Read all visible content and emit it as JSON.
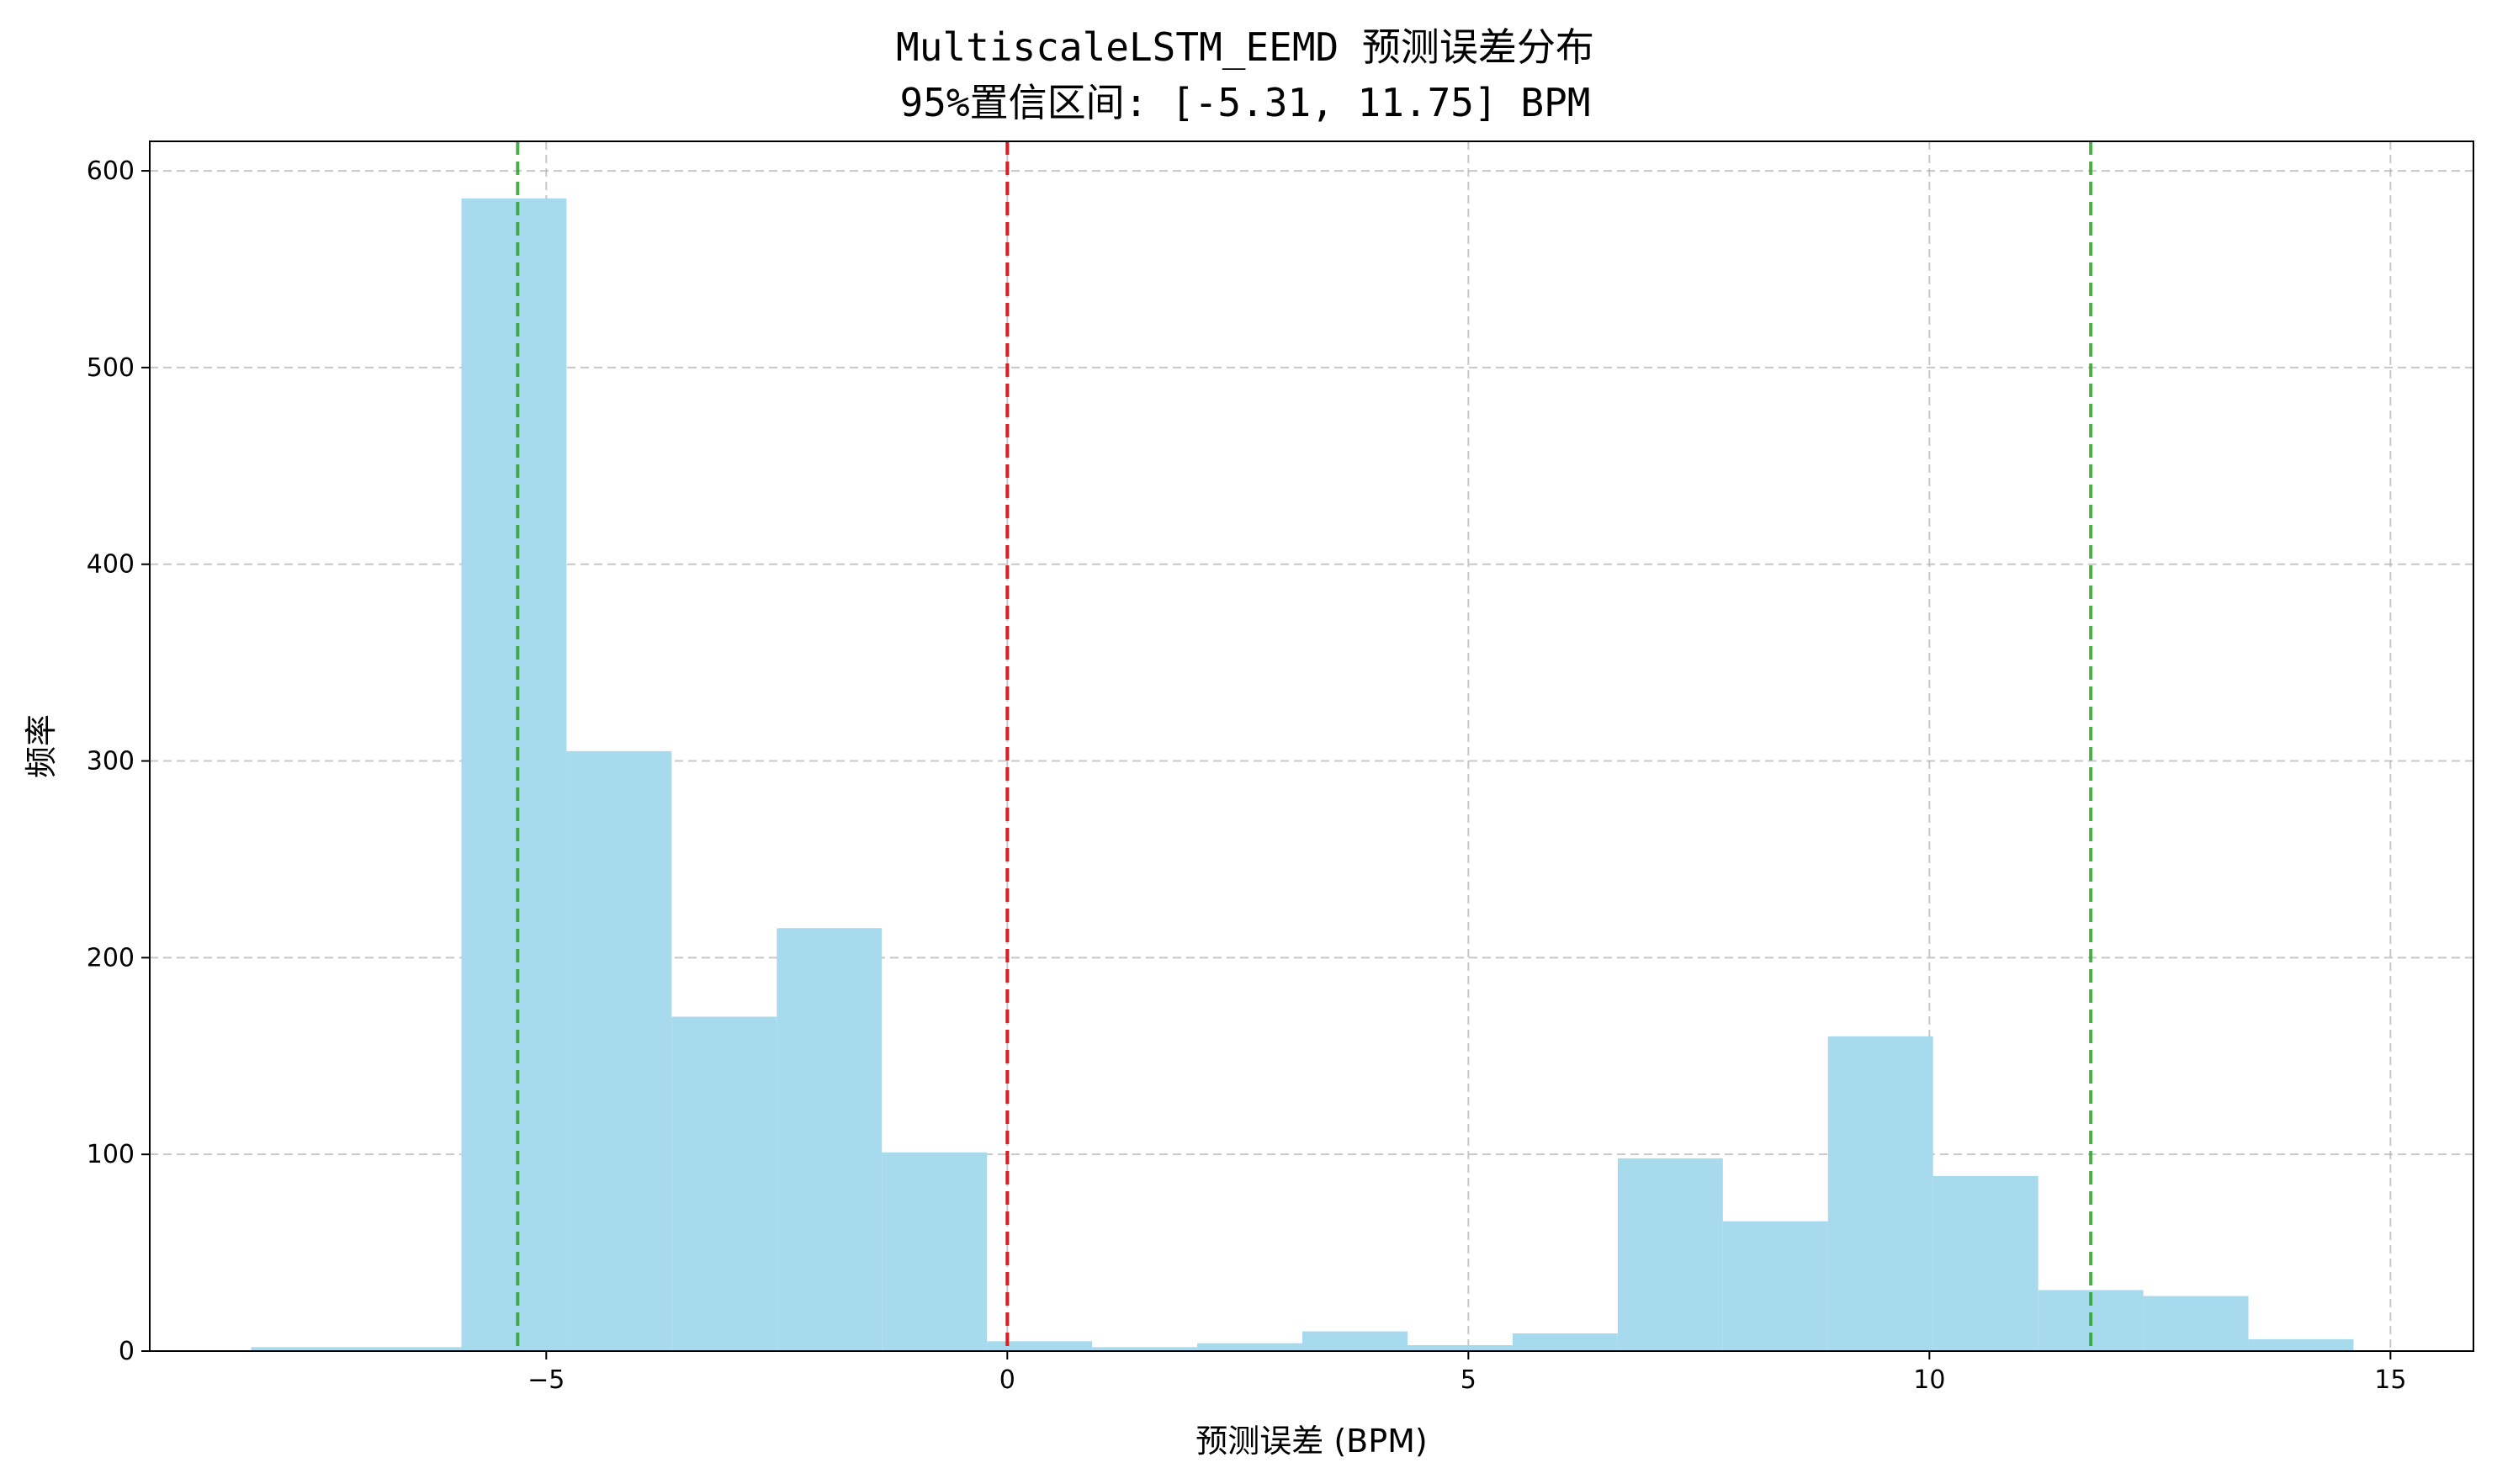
{
  "chart_data": {
    "type": "bar",
    "title": "MultiscaleLSTM_EEMD 预测误差分布",
    "subtitle": "95%置信区间: [-5.31, 11.75] BPM",
    "xlabel": "预测误差 (BPM)",
    "ylabel": "频率",
    "xlim": [
      -9.3,
      15.9
    ],
    "ylim": [
      0,
      615
    ],
    "x_ticks": [
      -5,
      0,
      5,
      10,
      15
    ],
    "y_ticks": [
      0,
      100,
      200,
      300,
      400,
      500,
      600
    ],
    "grid": true,
    "bar_color": "#a8daed",
    "bins": [
      {
        "x0": -8.2,
        "x1": -7.06,
        "value": 2
      },
      {
        "x0": -7.06,
        "x1": -5.92,
        "value": 2
      },
      {
        "x0": -5.92,
        "x1": -4.78,
        "value": 586
      },
      {
        "x0": -4.78,
        "x1": -3.64,
        "value": 305
      },
      {
        "x0": -3.64,
        "x1": -2.5,
        "value": 170
      },
      {
        "x0": -2.5,
        "x1": -1.36,
        "value": 215
      },
      {
        "x0": -1.36,
        "x1": -0.22,
        "value": 101
      },
      {
        "x0": -0.22,
        "x1": 0.92,
        "value": 5
      },
      {
        "x0": 0.92,
        "x1": 2.06,
        "value": 2
      },
      {
        "x0": 2.06,
        "x1": 3.2,
        "value": 4
      },
      {
        "x0": 3.2,
        "x1": 4.34,
        "value": 10
      },
      {
        "x0": 4.34,
        "x1": 5.48,
        "value": 3
      },
      {
        "x0": 5.48,
        "x1": 6.62,
        "value": 9
      },
      {
        "x0": 6.62,
        "x1": 7.76,
        "value": 98
      },
      {
        "x0": 7.76,
        "x1": 8.9,
        "value": 66
      },
      {
        "x0": 8.9,
        "x1": 10.04,
        "value": 160
      },
      {
        "x0": 10.04,
        "x1": 11.18,
        "value": 89
      },
      {
        "x0": 11.18,
        "x1": 12.32,
        "value": 31
      },
      {
        "x0": 12.32,
        "x1": 13.46,
        "value": 28
      },
      {
        "x0": 13.46,
        "x1": 14.6,
        "value": 6
      }
    ],
    "reference_lines": [
      {
        "x": 0,
        "color": "#e31a1c"
      },
      {
        "x": -5.31,
        "color": "#2ca02c"
      },
      {
        "x": 11.75,
        "color": "#2ca02c"
      }
    ]
  }
}
